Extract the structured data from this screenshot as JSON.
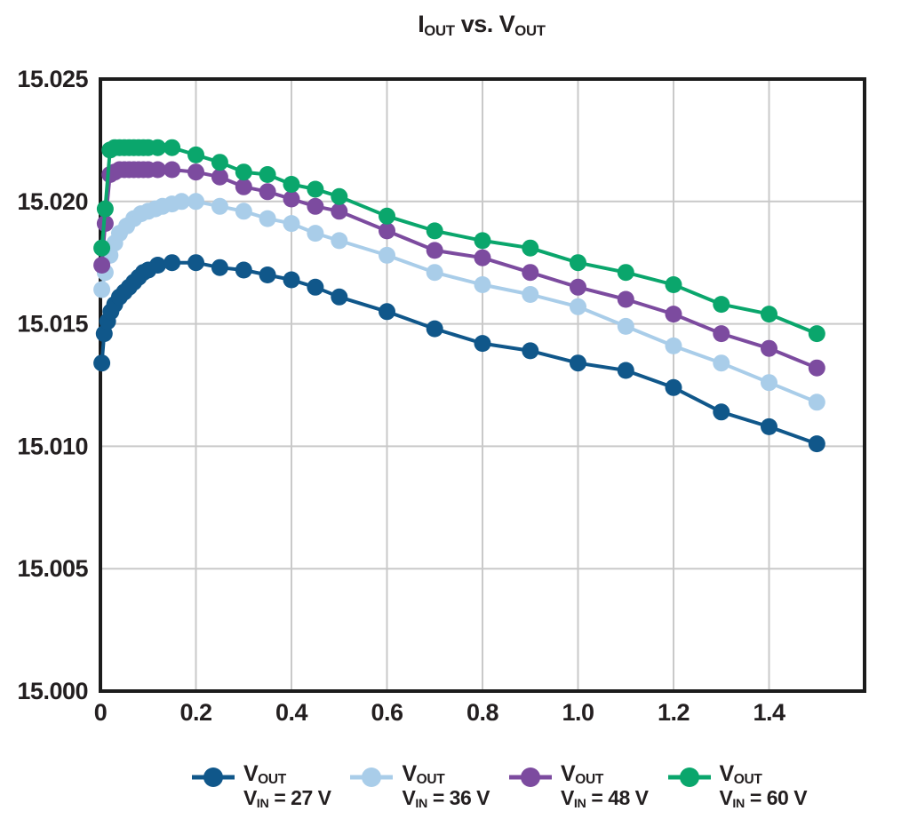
{
  "title": {
    "plain": "IOUT vs. VOUT",
    "segments": [
      {
        "t": "I"
      },
      {
        "t": "OUT",
        "sub": true
      },
      {
        "t": " vs. V"
      },
      {
        "t": "OUT",
        "sub": true
      }
    ]
  },
  "colors": {
    "text": "#231f20",
    "axis": "#1c1c1c",
    "gridline": "#c9c9c9",
    "background": "#ffffff",
    "series_vin27": "#10578a",
    "series_vin36": "#a9cde9",
    "series_vin48": "#7c4b9f",
    "series_vin60": "#0aa66c"
  },
  "chart_data": {
    "type": "line",
    "title": "IOUT vs. VOUT",
    "xlabel": "",
    "ylabel": "",
    "xlim": [
      0,
      1.6
    ],
    "ylim": [
      15.0,
      15.025
    ],
    "grid": true,
    "legend_position": "bottom",
    "x_ticks": [
      {
        "v": 0,
        "label": "0"
      },
      {
        "v": 0.2,
        "label": "0.2"
      },
      {
        "v": 0.4,
        "label": "0.4"
      },
      {
        "v": 0.6,
        "label": "0.6"
      },
      {
        "v": 0.8,
        "label": "0.8"
      },
      {
        "v": 1.0,
        "label": "1.0"
      },
      {
        "v": 1.2,
        "label": "1.2"
      },
      {
        "v": 1.4,
        "label": "1.4"
      }
    ],
    "y_ticks": [
      {
        "v": 15.0,
        "label": "15.000"
      },
      {
        "v": 15.005,
        "label": "15.005"
      },
      {
        "v": 15.01,
        "label": "15.010"
      },
      {
        "v": 15.015,
        "label": "15.015"
      },
      {
        "v": 15.02,
        "label": "15.020"
      },
      {
        "v": 15.025,
        "label": "15.025"
      }
    ],
    "x_gridlines": [
      0.2,
      0.4,
      0.6,
      0.8,
      1.0,
      1.2,
      1.4
    ],
    "y_gridlines": [
      15.005,
      15.01,
      15.015,
      15.02
    ],
    "series": [
      {
        "id": "vin27",
        "name": "VOUT, VIN = 27 V",
        "color": "#10578a",
        "legend_line1": [
          {
            "t": "V"
          },
          {
            "t": "OUT",
            "sub": true
          }
        ],
        "legend_line2": [
          {
            "t": "V"
          },
          {
            "t": "IN",
            "sub": true
          },
          {
            "t": " = 27 V"
          }
        ],
        "x": [
          0.003,
          0.008,
          0.015,
          0.022,
          0.03,
          0.04,
          0.05,
          0.06,
          0.07,
          0.08,
          0.09,
          0.1,
          0.12,
          0.15,
          0.2,
          0.25,
          0.3,
          0.35,
          0.4,
          0.45,
          0.5,
          0.6,
          0.7,
          0.8,
          0.9,
          1.0,
          1.1,
          1.2,
          1.3,
          1.4,
          1.5
        ],
        "values": [
          15.0134,
          15.0146,
          15.0151,
          15.0155,
          15.0158,
          15.0161,
          15.0163,
          15.0165,
          15.0167,
          15.0169,
          15.0171,
          15.0172,
          15.0174,
          15.0175,
          15.0175,
          15.0173,
          15.0172,
          15.017,
          15.0168,
          15.0165,
          15.0161,
          15.0155,
          15.0148,
          15.0142,
          15.0139,
          15.0134,
          15.0131,
          15.0124,
          15.0114,
          15.0108,
          15.0101
        ]
      },
      {
        "id": "vin36",
        "name": "VOUT, VIN = 36 V",
        "color": "#a9cde9",
        "legend_line1": [
          {
            "t": "V"
          },
          {
            "t": "OUT",
            "sub": true
          }
        ],
        "legend_line2": [
          {
            "t": "V"
          },
          {
            "t": "IN",
            "sub": true
          },
          {
            "t": " = 36 V"
          }
        ],
        "x": [
          0.003,
          0.01,
          0.02,
          0.03,
          0.04,
          0.055,
          0.07,
          0.085,
          0.1,
          0.115,
          0.13,
          0.15,
          0.17,
          0.2,
          0.25,
          0.3,
          0.35,
          0.4,
          0.45,
          0.5,
          0.6,
          0.7,
          0.8,
          0.9,
          1.0,
          1.1,
          1.2,
          1.3,
          1.4,
          1.5
        ],
        "values": [
          15.0164,
          15.0171,
          15.0178,
          15.0183,
          15.0187,
          15.019,
          15.0193,
          15.0195,
          15.0196,
          15.0197,
          15.0198,
          15.0199,
          15.02,
          15.02,
          15.0198,
          15.0196,
          15.0193,
          15.0191,
          15.0187,
          15.0184,
          15.0178,
          15.0171,
          15.0166,
          15.0162,
          15.0157,
          15.0149,
          15.0141,
          15.0134,
          15.0126,
          15.0118
        ]
      },
      {
        "id": "vin48",
        "name": "VOUT, VIN = 48 V",
        "color": "#7c4b9f",
        "legend_line1": [
          {
            "t": "V"
          },
          {
            "t": "OUT",
            "sub": true
          }
        ],
        "legend_line2": [
          {
            "t": "V"
          },
          {
            "t": "IN",
            "sub": true
          },
          {
            "t": " = 48 V"
          }
        ],
        "x": [
          0.003,
          0.01,
          0.02,
          0.03,
          0.04,
          0.05,
          0.06,
          0.07,
          0.08,
          0.09,
          0.1,
          0.12,
          0.15,
          0.2,
          0.25,
          0.3,
          0.35,
          0.4,
          0.45,
          0.5,
          0.6,
          0.7,
          0.8,
          0.9,
          1.0,
          1.1,
          1.2,
          1.3,
          1.4,
          1.5
        ],
        "values": [
          15.0174,
          15.0191,
          15.0211,
          15.0212,
          15.0213,
          15.0213,
          15.0213,
          15.0213,
          15.0213,
          15.0213,
          15.0213,
          15.0213,
          15.0213,
          15.0212,
          15.021,
          15.0206,
          15.0204,
          15.0201,
          15.0198,
          15.0196,
          15.0188,
          15.018,
          15.0177,
          15.0171,
          15.0165,
          15.016,
          15.0154,
          15.0146,
          15.014,
          15.0132
        ]
      },
      {
        "id": "vin60",
        "name": "VOUT, VIN = 60 V",
        "color": "#0aa66c",
        "legend_line1": [
          {
            "t": "V"
          },
          {
            "t": "OUT",
            "sub": true
          }
        ],
        "legend_line2": [
          {
            "t": "V"
          },
          {
            "t": "IN",
            "sub": true
          },
          {
            "t": " = 60 V"
          }
        ],
        "x": [
          0.003,
          0.01,
          0.02,
          0.03,
          0.04,
          0.05,
          0.06,
          0.07,
          0.08,
          0.09,
          0.1,
          0.12,
          0.15,
          0.2,
          0.25,
          0.3,
          0.35,
          0.4,
          0.45,
          0.5,
          0.6,
          0.7,
          0.8,
          0.9,
          1.0,
          1.1,
          1.2,
          1.3,
          1.4,
          1.5
        ],
        "values": [
          15.0181,
          15.0197,
          15.0221,
          15.0222,
          15.0222,
          15.0222,
          15.0222,
          15.0222,
          15.0222,
          15.0222,
          15.0222,
          15.0222,
          15.0222,
          15.0219,
          15.0216,
          15.0212,
          15.0211,
          15.0207,
          15.0205,
          15.0202,
          15.0194,
          15.0188,
          15.0184,
          15.0181,
          15.0175,
          15.0171,
          15.0166,
          15.0158,
          15.0154,
          15.0146
        ]
      }
    ]
  }
}
